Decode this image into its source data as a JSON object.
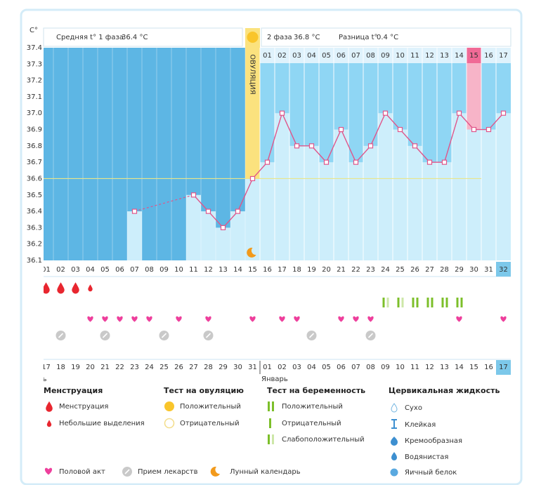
{
  "header": {
    "phase1_label": "Средняя t° 1 фаза",
    "phase1_value": "36.4 °C",
    "phase2_label": "2 фаза",
    "phase2_value": "36.8 °C",
    "diff_label": "Разница t°",
    "diff_value": "0.4 °C"
  },
  "chart_data": {
    "type": "line",
    "y_unit": "C°",
    "categories": [
      "01",
      "02",
      "03",
      "04",
      "05",
      "06",
      "07",
      "08",
      "09",
      "10",
      "11",
      "12",
      "13",
      "14",
      "15",
      "16",
      "17",
      "18",
      "19",
      "20",
      "21",
      "22",
      "23",
      "24",
      "25",
      "26",
      "27",
      "28",
      "29",
      "30",
      "31",
      "32"
    ],
    "series": [
      {
        "color": "#e0558a",
        "values": [
          null,
          null,
          null,
          null,
          null,
          null,
          36.4,
          null,
          null,
          null,
          36.5,
          36.4,
          36.3,
          36.4,
          36.6,
          36.7,
          37.0,
          36.8,
          36.8,
          36.7,
          36.9,
          36.7,
          36.8,
          37.0,
          36.9,
          36.8,
          36.7,
          36.7,
          37.0,
          36.9,
          36.9,
          37.0
        ]
      }
    ],
    "ylim": [
      36.1,
      37.4
    ],
    "yticks": [
      37.4,
      37.3,
      37.2,
      37.1,
      {
        "value": 37,
        "label": "37.0"
      },
      36.9,
      36.8,
      36.7,
      36.6,
      36.5,
      36.4,
      36.3,
      36.2,
      36.1
    ],
    "coverline": 36.6,
    "ovulation_day": 15,
    "ovulation_label": "ОВУЛЯЦИЯ",
    "highlight_day": 30,
    "today_day": 32,
    "top_dates": [
      null,
      null,
      null,
      null,
      null,
      null,
      null,
      null,
      null,
      null,
      null,
      null,
      null,
      null,
      null,
      "01",
      "02",
      "03",
      "04",
      "05",
      "06",
      "07",
      "08",
      "09",
      "10",
      "11",
      "12",
      "13",
      "14",
      "15",
      "16",
      "17"
    ],
    "dates": [
      {
        "label": "17",
        "weekend": true
      },
      {
        "label": "18",
        "weekend": false
      },
      {
        "label": "19",
        "weekend": false
      },
      {
        "label": "20",
        "weekend": false
      },
      {
        "label": "21",
        "weekend": false
      },
      {
        "label": "22",
        "weekend": false
      },
      {
        "label": "23",
        "weekend": true
      },
      {
        "label": "24",
        "weekend": true
      },
      {
        "label": "25",
        "weekend": false
      },
      {
        "label": "26",
        "weekend": false
      },
      {
        "label": "27",
        "weekend": false
      },
      {
        "label": "28",
        "weekend": false
      },
      {
        "label": "29",
        "weekend": false
      },
      {
        "label": "30",
        "weekend": true
      },
      {
        "label": "31",
        "weekend": true
      },
      {
        "label": "01",
        "weekend": false
      },
      {
        "label": "02",
        "weekend": false
      },
      {
        "label": "03",
        "weekend": false
      },
      {
        "label": "04",
        "weekend": false
      },
      {
        "label": "05",
        "weekend": false
      },
      {
        "label": "06",
        "weekend": true
      },
      {
        "label": "07",
        "weekend": true
      },
      {
        "label": "08",
        "weekend": false
      },
      {
        "label": "09",
        "weekend": false
      },
      {
        "label": "10",
        "weekend": false
      },
      {
        "label": "11",
        "weekend": false
      },
      {
        "label": "12",
        "weekend": false
      },
      {
        "label": "13",
        "weekend": true
      },
      {
        "label": "14",
        "weekend": true
      },
      {
        "label": "15",
        "weekend": false
      },
      {
        "label": "16",
        "weekend": false
      },
      {
        "label": "17",
        "weekend": false
      }
    ],
    "months": [
      {
        "label": "Декабрь",
        "start_day": 1
      },
      {
        "label": "Январь",
        "start_day": 16
      }
    ],
    "menstruation_days": [
      1,
      2,
      3
    ],
    "spotting_days": [
      4
    ],
    "pregnancy_test_weak_days": [
      24,
      25
    ],
    "pregnancy_test_positive_days": [
      26,
      27,
      28,
      29
    ],
    "intercourse_days": [
      4,
      5,
      6,
      7,
      8,
      10,
      12,
      15,
      17,
      18,
      21,
      22,
      23,
      29,
      32
    ],
    "medication_days": [
      2,
      5,
      9,
      12,
      19,
      23
    ]
  },
  "legend": {
    "menstruation": {
      "title": "Менструация",
      "items": [
        "Менструация",
        "Небольшие выделения"
      ]
    },
    "ovulation_test": {
      "title": "Тест на овуляцию",
      "items": [
        "Положительный",
        "Отрицательный"
      ]
    },
    "pregnancy_test": {
      "title": "Тест на беременность",
      "items": [
        "Положительный",
        "Отрицательный",
        "Слабоположительный"
      ]
    },
    "cervical_fluid": {
      "title": "Цервикальная жидкость",
      "items": [
        "Сухо",
        "Клейкая",
        "Кремообразная",
        "Водянистая",
        "Яичный белок"
      ]
    },
    "other": [
      "Половой акт",
      "Прием лекарств",
      "Лунный календарь"
    ]
  }
}
